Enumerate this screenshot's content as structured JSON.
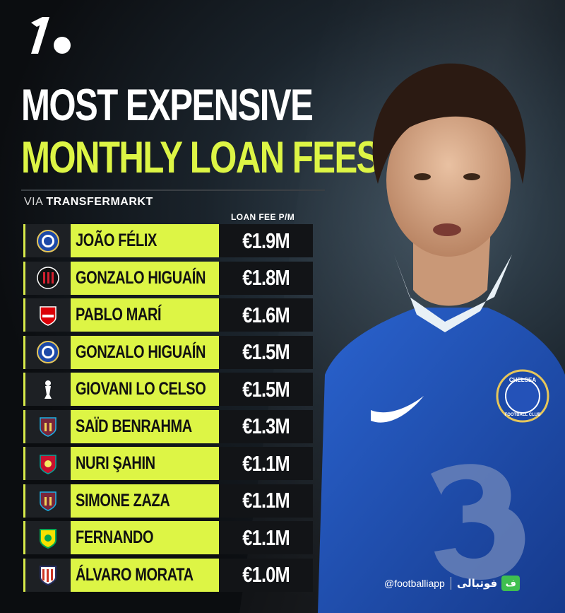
{
  "header": {
    "title_line1": "MOST EXPENSIVE",
    "title_line2": "MONTHLY LOAN FEES",
    "source_prefix": "VIA",
    "source_name": "TRANSFERMARKT"
  },
  "table": {
    "column_header": "LOAN FEE P/M",
    "rows": [
      {
        "club_icon": "chelsea-crest-icon",
        "player": "JOÃO FÉLIX",
        "fee": "€1.9M"
      },
      {
        "club_icon": "ac-milan-crest-icon",
        "player": "GONZALO HIGUAÍN",
        "fee": "€1.8M"
      },
      {
        "club_icon": "arsenal-crest-icon",
        "player": "PABLO MARÍ",
        "fee": "€1.6M"
      },
      {
        "club_icon": "chelsea-crest-icon",
        "player": "GONZALO HIGUAÍN",
        "fee": "€1.5M"
      },
      {
        "club_icon": "tottenham-crest-icon",
        "player": "GIOVANI LO CELSO",
        "fee": "€1.5M"
      },
      {
        "club_icon": "west-ham-crest-icon",
        "player": "SAÏD BENRAHMA",
        "fee": "€1.3M"
      },
      {
        "club_icon": "liverpool-crest-icon",
        "player": "NURI ŞAHIN",
        "fee": "€1.1M"
      },
      {
        "club_icon": "west-ham-crest-icon",
        "player": "SIMONE ZAZA",
        "fee": "€1.1M"
      },
      {
        "club_icon": "norwich-crest-icon",
        "player": "FERNANDO",
        "fee": "€1.1M"
      },
      {
        "club_icon": "atletico-crest-icon",
        "player": "ÁLVARO MORATA",
        "fee": "€1.0M"
      }
    ]
  },
  "player_image": {
    "shirt_text": "CHELSEA",
    "shirt_subtext": "FOOTBALL CLUB"
  },
  "watermark": {
    "handle": "@footballiapp",
    "brand_fa": "فوتبالی",
    "badge": "ف"
  },
  "colors": {
    "accent": "#ddf545",
    "background": "#0b0d10",
    "jersey": "#1f4fb4"
  }
}
